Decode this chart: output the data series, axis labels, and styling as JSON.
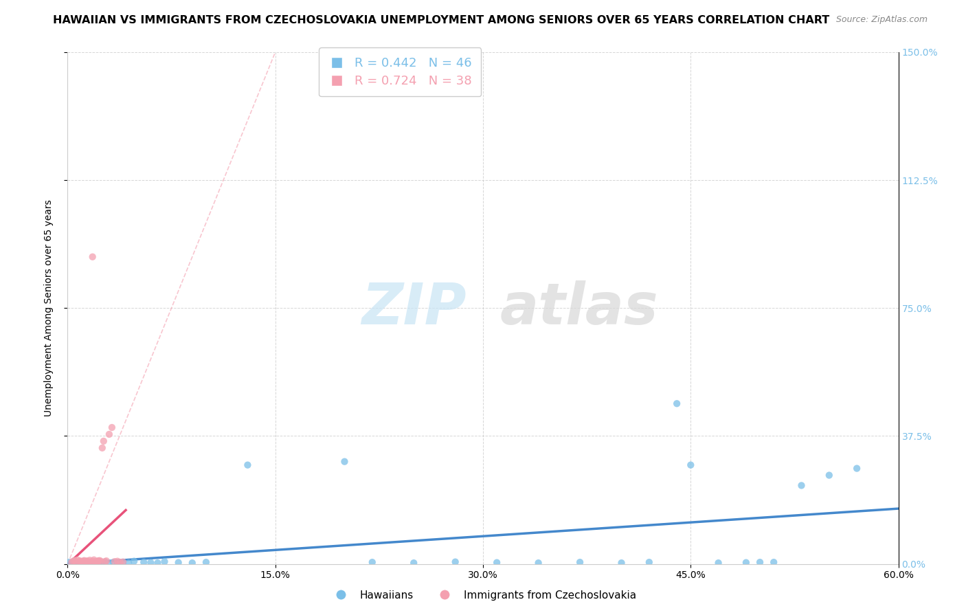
{
  "title": "HAWAIIAN VS IMMIGRANTS FROM CZECHOSLOVAKIA UNEMPLOYMENT AMONG SENIORS OVER 65 YEARS CORRELATION CHART",
  "source": "Source: ZipAtlas.com",
  "xlabel_ticks": [
    "0.0%",
    "15.0%",
    "30.0%",
    "45.0%",
    "60.0%"
  ],
  "ylabel_ticks": [
    "0.0%",
    "37.5%",
    "75.0%",
    "112.5%",
    "150.0%"
  ],
  "xlim": [
    0.0,
    0.6
  ],
  "ylim": [
    0.0,
    1.5
  ],
  "hawaiian_scatter": [
    [
      0.001,
      0.005
    ],
    [
      0.003,
      0.003
    ],
    [
      0.005,
      0.008
    ],
    [
      0.007,
      0.002
    ],
    [
      0.009,
      0.004
    ],
    [
      0.011,
      0.001
    ],
    [
      0.013,
      0.006
    ],
    [
      0.015,
      0.003
    ],
    [
      0.017,
      0.002
    ],
    [
      0.019,
      0.005
    ],
    [
      0.021,
      0.003
    ],
    [
      0.023,
      0.004
    ],
    [
      0.025,
      0.002
    ],
    [
      0.027,
      0.006
    ],
    [
      0.03,
      0.003
    ],
    [
      0.033,
      0.005
    ],
    [
      0.036,
      0.002
    ],
    [
      0.04,
      0.004
    ],
    [
      0.044,
      0.003
    ],
    [
      0.048,
      0.008
    ],
    [
      0.055,
      0.005
    ],
    [
      0.06,
      0.004
    ],
    [
      0.065,
      0.003
    ],
    [
      0.07,
      0.007
    ],
    [
      0.08,
      0.004
    ],
    [
      0.09,
      0.003
    ],
    [
      0.1,
      0.005
    ],
    [
      0.13,
      0.29
    ],
    [
      0.2,
      0.3
    ],
    [
      0.22,
      0.005
    ],
    [
      0.25,
      0.003
    ],
    [
      0.28,
      0.006
    ],
    [
      0.31,
      0.004
    ],
    [
      0.34,
      0.003
    ],
    [
      0.37,
      0.005
    ],
    [
      0.4,
      0.003
    ],
    [
      0.42,
      0.005
    ],
    [
      0.44,
      0.47
    ],
    [
      0.47,
      0.003
    ],
    [
      0.49,
      0.004
    ],
    [
      0.51,
      0.005
    ],
    [
      0.53,
      0.23
    ],
    [
      0.55,
      0.26
    ],
    [
      0.57,
      0.28
    ],
    [
      0.45,
      0.29
    ],
    [
      0.5,
      0.005
    ]
  ],
  "czech_scatter": [
    [
      0.003,
      0.005
    ],
    [
      0.004,
      0.008
    ],
    [
      0.005,
      0.01
    ],
    [
      0.006,
      0.006
    ],
    [
      0.007,
      0.012
    ],
    [
      0.008,
      0.007
    ],
    [
      0.009,
      0.009
    ],
    [
      0.01,
      0.005
    ],
    [
      0.011,
      0.008
    ],
    [
      0.012,
      0.01
    ],
    [
      0.013,
      0.006
    ],
    [
      0.014,
      0.009
    ],
    [
      0.015,
      0.007
    ],
    [
      0.016,
      0.011
    ],
    [
      0.017,
      0.006
    ],
    [
      0.018,
      0.008
    ],
    [
      0.019,
      0.012
    ],
    [
      0.02,
      0.007
    ],
    [
      0.021,
      0.006
    ],
    [
      0.022,
      0.009
    ],
    [
      0.023,
      0.01
    ],
    [
      0.024,
      0.008
    ],
    [
      0.025,
      0.34
    ],
    [
      0.026,
      0.36
    ],
    [
      0.027,
      0.007
    ],
    [
      0.028,
      0.009
    ],
    [
      0.03,
      0.38
    ],
    [
      0.032,
      0.4
    ],
    [
      0.034,
      0.007
    ],
    [
      0.036,
      0.008
    ],
    [
      0.038,
      0.005
    ],
    [
      0.04,
      0.006
    ],
    [
      0.015,
      0.005
    ],
    [
      0.012,
      0.008
    ],
    [
      0.02,
      0.006
    ],
    [
      0.018,
      0.9
    ],
    [
      0.01,
      0.007
    ],
    [
      0.022,
      0.008
    ]
  ],
  "hawaiian_color": "#7bbfe8",
  "czech_color": "#f4a0b0",
  "trendline_color_hawaiian": "#4488cc",
  "trendline_color_czech": "#e8527a",
  "refline_color": "#f4a0b0",
  "R_hawaiian": 0.442,
  "N_hawaiian": 46,
  "R_czech": 0.724,
  "N_czech": 38,
  "legend_label_hawaiian": "Hawaiians",
  "legend_label_czech": "Immigrants from Czechoslovakia",
  "watermark_zip": "ZIP",
  "watermark_atlas": "atlas",
  "background_color": "#ffffff",
  "grid_color": "#cccccc",
  "title_fontsize": 11.5,
  "source_fontsize": 9,
  "axis_label_fontsize": 10,
  "tick_fontsize": 10,
  "right_tick_color": "#7bbfe8",
  "scatter_size": 55
}
